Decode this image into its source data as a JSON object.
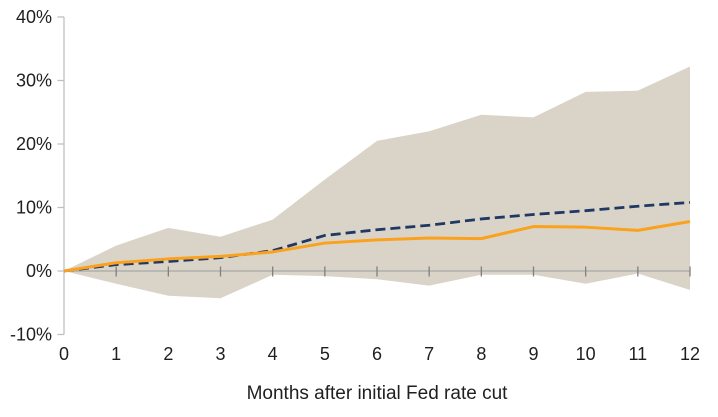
{
  "chart_data": {
    "type": "line",
    "title": "",
    "xlabel": "Months after initial Fed rate cut",
    "ylabel": "",
    "xlim": [
      0,
      12
    ],
    "ylim": [
      -10,
      40
    ],
    "grid": false,
    "legend_position": "none",
    "x": [
      0,
      1,
      2,
      3,
      4,
      5,
      6,
      7,
      8,
      9,
      10,
      11,
      12
    ],
    "x_tick_labels": [
      "0",
      "1",
      "2",
      "3",
      "4",
      "5",
      "6",
      "7",
      "8",
      "9",
      "10",
      "11",
      "12"
    ],
    "y_ticks": [
      40,
      30,
      20,
      10,
      0,
      -10
    ],
    "y_tick_labels": [
      "40%",
      "30%",
      "20%",
      "10%",
      "0%",
      "-10%"
    ],
    "band": {
      "name": "min-max-range-band",
      "fill": "#DAD4C8",
      "upper": [
        0,
        4.0,
        6.8,
        5.4,
        8.1,
        14.4,
        20.5,
        22.0,
        24.6,
        24.2,
        28.2,
        28.4,
        32.2
      ],
      "lower": [
        0,
        -2.0,
        -3.9,
        -4.3,
        -0.6,
        -0.8,
        -1.3,
        -2.3,
        -0.6,
        -0.6,
        -2.0,
        -0.4,
        -3.0
      ]
    },
    "series": [
      {
        "name": "dashed-navy-line",
        "style": "dashed",
        "color": "#1F3864",
        "values": [
          0,
          1.0,
          1.5,
          2.1,
          3.2,
          5.6,
          6.5,
          7.2,
          8.2,
          8.9,
          9.5,
          10.2,
          10.8
        ]
      },
      {
        "name": "solid-orange-line",
        "style": "solid",
        "color": "#FAA21E",
        "values": [
          0,
          1.3,
          1.9,
          2.3,
          3.0,
          4.4,
          4.9,
          5.2,
          5.1,
          7.0,
          6.9,
          6.4,
          7.8
        ]
      }
    ],
    "colors": {
      "zero_axis_line": "#A6A6A6",
      "y_axis_line": "#BFBFBF",
      "tick_mark": "#7F7F7F",
      "text": "#1F1F1F",
      "background": "#FFFFFF"
    }
  }
}
